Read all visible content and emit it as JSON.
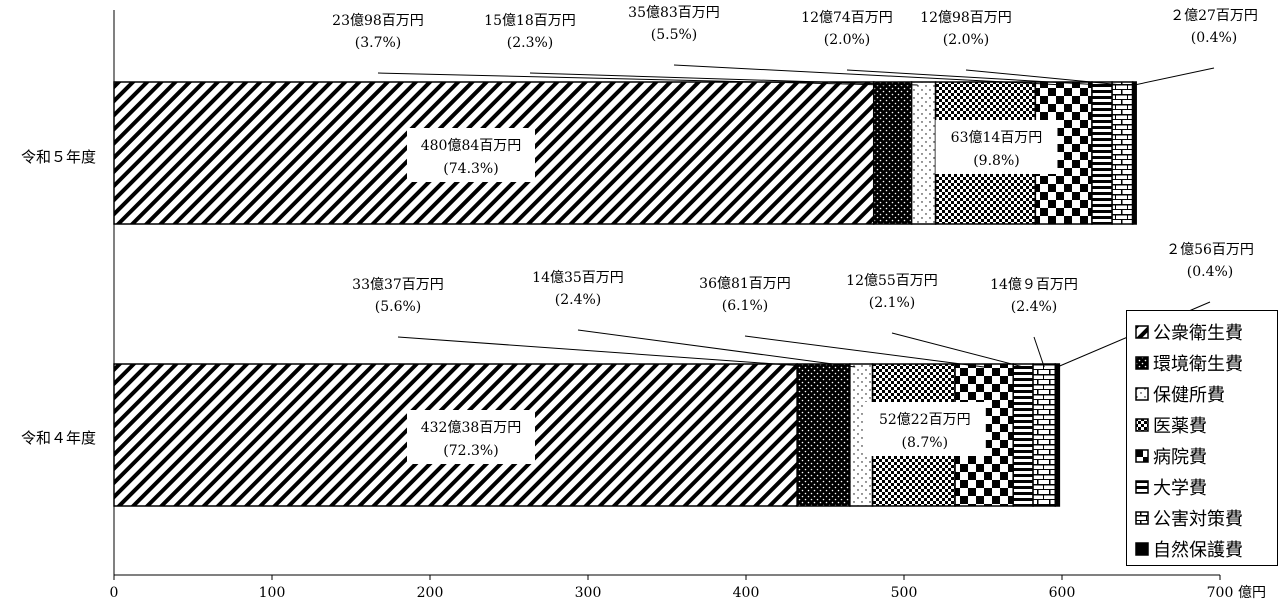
{
  "chart_data": {
    "type": "bar",
    "orientation": "horizontal",
    "stacked": true,
    "categories": [
      "令和５年度",
      "令和４年度"
    ],
    "unit_label": "億円",
    "xlim": [
      0,
      700
    ],
    "x_ticks": [
      0,
      100,
      200,
      300,
      400,
      500,
      600,
      700
    ],
    "series": [
      {
        "name": "公衆衛生費",
        "values": [
          480.84,
          432.38
        ],
        "labels": [
          "480億84百万円",
          "432億38百万円"
        ],
        "pct": [
          "(74.3%)",
          "(72.3%)"
        ]
      },
      {
        "name": "環境衛生費",
        "values": [
          23.98,
          33.37
        ],
        "labels": [
          "23億98百万円",
          "33億37百万円"
        ],
        "pct": [
          "(3.7%)",
          "(5.6%)"
        ]
      },
      {
        "name": "保健所費",
        "values": [
          15.18,
          14.35
        ],
        "labels": [
          "15億18百万円",
          "14億35百万円"
        ],
        "pct": [
          "(2.3%)",
          "(2.4%)"
        ]
      },
      {
        "name": "医薬費",
        "values": [
          63.14,
          52.22
        ],
        "labels": [
          "63億14百万円",
          "52億22百万円"
        ],
        "pct": [
          "(9.8%)",
          "(8.7%)"
        ]
      },
      {
        "name": "病院費",
        "values": [
          35.83,
          36.81
        ],
        "labels": [
          "35億83百万円",
          "36億81百万円"
        ],
        "pct": [
          "(5.5%)",
          "(6.1%)"
        ]
      },
      {
        "name": "大学費",
        "values": [
          12.74,
          12.55
        ],
        "labels": [
          "12億74百万円",
          "12億55百万円"
        ],
        "pct": [
          "(2.0%)",
          "(2.1%)"
        ]
      },
      {
        "name": "公害対策費",
        "values": [
          12.98,
          14.09
        ],
        "labels": [
          "12億98百万円",
          "14億９百万円"
        ],
        "pct": [
          "(2.0%)",
          "(2.4%)"
        ]
      },
      {
        "name": "自然保護費",
        "values": [
          2.27,
          2.56
        ],
        "labels": [
          "２億27百万円",
          "２億56百万円"
        ],
        "pct": [
          "(0.4%)",
          "(0.4%)"
        ]
      }
    ],
    "legend_position": "bottom-right",
    "grid": false
  }
}
